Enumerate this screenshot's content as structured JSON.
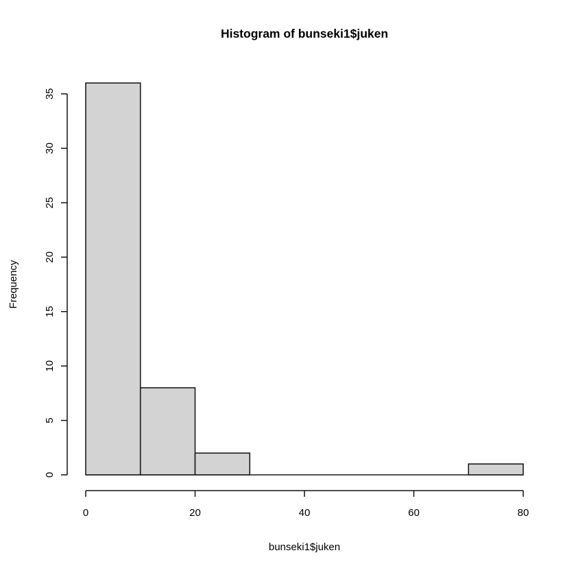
{
  "figure": {
    "background": "#ffffff"
  },
  "chart_data": {
    "type": "bar",
    "subtype": "histogram",
    "title": "Histogram of bunseki1$juken",
    "xlabel": "bunseki1$juken",
    "ylabel": "Frequency",
    "bin_edges": [
      0,
      10,
      20,
      30,
      40,
      50,
      60,
      70,
      80
    ],
    "categories": [
      "0-10",
      "10-20",
      "20-30",
      "30-40",
      "40-50",
      "50-60",
      "60-70",
      "70-80"
    ],
    "values": [
      36,
      8,
      2,
      0,
      0,
      0,
      0,
      1
    ],
    "x_ticks": [
      0,
      20,
      40,
      60,
      80
    ],
    "y_ticks": [
      0,
      5,
      10,
      15,
      20,
      25,
      30,
      35
    ],
    "xlim": [
      0,
      80
    ],
    "axis_ylim": [
      0,
      35
    ],
    "data_ymax": 36,
    "grid": false,
    "legend": null,
    "bar_fill": "#d3d3d3",
    "bar_stroke": "#1c1c1c",
    "axis_color": "#111111"
  }
}
